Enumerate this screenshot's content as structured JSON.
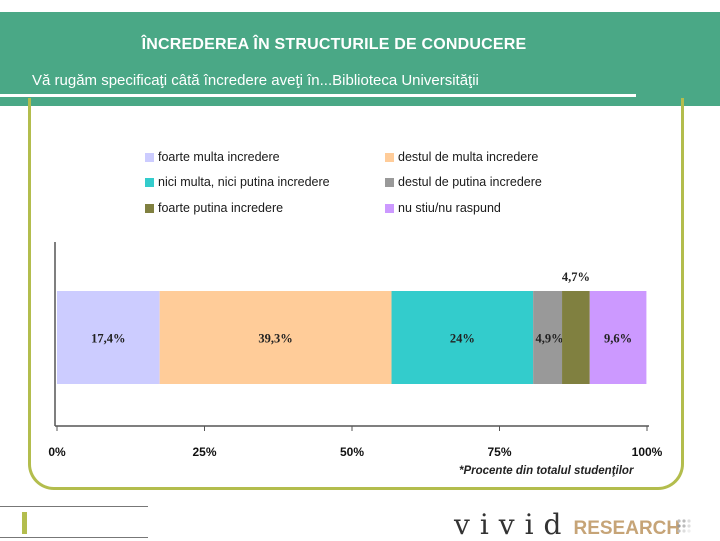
{
  "header": {
    "title": "ÎNCREDEREA ÎN STRUCTURILE DE CONDUCERE",
    "subtitle": "Vă rugăm specificaţi câtă încredere aveţi în...Biblioteca Universităţii"
  },
  "legend": [
    {
      "label": "foarte multa incredere",
      "color": "#ccccff"
    },
    {
      "label": "destul de multa incredere",
      "color": "#ffcc99"
    },
    {
      "label": "nici multa, nici putina incredere",
      "color": "#33cccc"
    },
    {
      "label": "destul de putina incredere",
      "color": "#999999"
    },
    {
      "label": "foarte putina incredere",
      "color": "#808040"
    },
    {
      "label": "nu stiu/nu raspund",
      "color": "#cc99ff"
    }
  ],
  "chart_data": {
    "type": "bar",
    "orientation": "horizontal-stacked",
    "categories": [
      "Biblioteca Universităţii"
    ],
    "series": [
      {
        "name": "foarte multa incredere",
        "values": [
          17.4
        ],
        "label": "17,4%",
        "color": "#ccccff"
      },
      {
        "name": "destul de multa incredere",
        "values": [
          39.3
        ],
        "label": "39,3%",
        "color": "#ffcc99"
      },
      {
        "name": "nici multa, nici putina incredere",
        "values": [
          24
        ],
        "label": "24%",
        "color": "#33cccc"
      },
      {
        "name": "destul de putina incredere",
        "values": [
          4.9
        ],
        "label": "4,9%",
        "color": "#999999"
      },
      {
        "name": "foarte putina incredere",
        "values": [
          4.7
        ],
        "label": "4,7%",
        "color": "#808040"
      },
      {
        "name": "nu stiu/nu raspund",
        "values": [
          9.6
        ],
        "label": "9,6%",
        "color": "#cc99ff"
      }
    ],
    "xlim": [
      0,
      100
    ],
    "xticks": [
      "0%",
      "25%",
      "50%",
      "75%",
      "100%"
    ],
    "legend_position": "top"
  },
  "footnote": "*Procente din totalul studenţilor",
  "logo": {
    "brand": "vivid",
    "suffix": "RESEARCH"
  }
}
